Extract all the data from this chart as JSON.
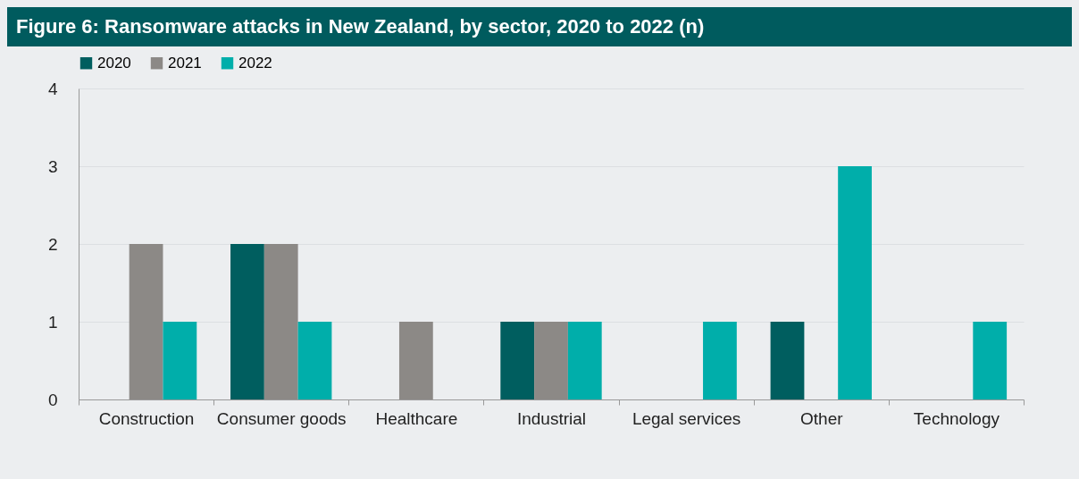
{
  "chart_data": {
    "type": "bar",
    "title": "Figure 6: Ransomware attacks in New Zealand, by sector, 2020 to 2022 (n)",
    "categories": [
      "Construction",
      "Consumer goods",
      "Healthcare",
      "Industrial",
      "Legal services",
      "Other",
      "Technology"
    ],
    "series": [
      {
        "name": "2020",
        "color": "#005e5f",
        "values": [
          0,
          2,
          0,
          1,
          0,
          1,
          0
        ]
      },
      {
        "name": "2021",
        "color": "#8c8986",
        "values": [
          2,
          2,
          1,
          1,
          0,
          0,
          0
        ]
      },
      {
        "name": "2022",
        "color": "#00aeaa",
        "values": [
          1,
          1,
          0,
          1,
          1,
          3,
          1
        ]
      }
    ],
    "ylim": [
      0,
      4
    ],
    "yticks": [
      0,
      1,
      2,
      3,
      4
    ],
    "grid": "y",
    "legend": "top"
  }
}
